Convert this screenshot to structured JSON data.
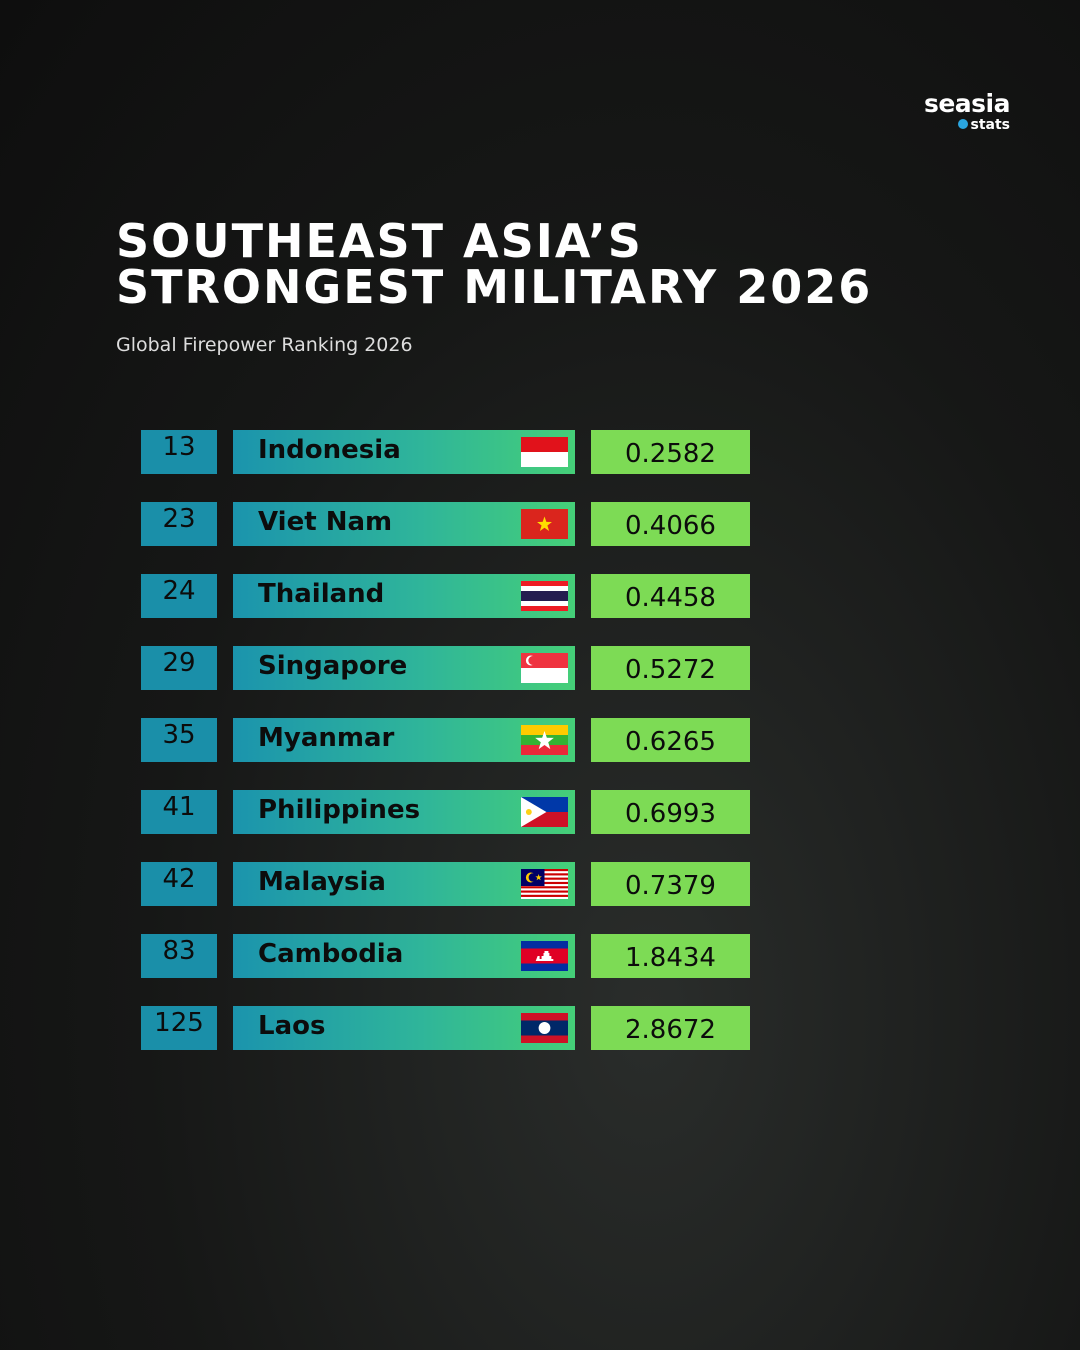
{
  "brand": {
    "name": "seasia",
    "tagline": "stats"
  },
  "header": {
    "title_line1": "SOUTHEAST ASIA’S",
    "title_line2": "STRONGEST MILITARY 2026",
    "subtitle": "Global Firepower Ranking 2026"
  },
  "table": {
    "rows": [
      [
        13,
        "Indonesia",
        0.2582
      ],
      [
        23,
        "Viet Nam",
        0.4066
      ],
      [
        24,
        "Thailand",
        0.4458
      ],
      [
        29,
        "Singapore",
        0.5272
      ],
      [
        35,
        "Myanmar",
        0.6265
      ],
      [
        41,
        "Philippines",
        0.6993
      ],
      [
        42,
        "Malaysia",
        0.7379
      ],
      [
        83,
        "Cambodia",
        1.8434
      ],
      [
        125,
        "Laos",
        2.8672
      ]
    ]
  }
}
